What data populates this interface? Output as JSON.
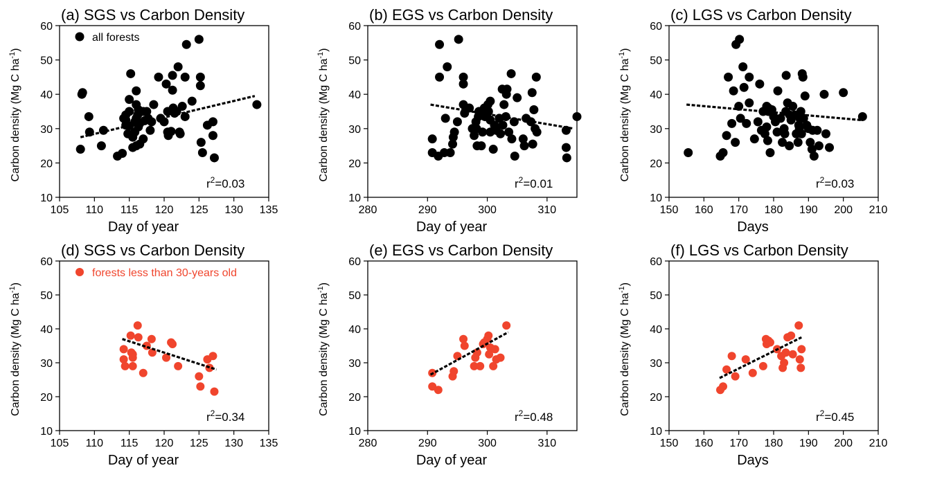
{
  "colors": {
    "black_points": "#000000",
    "red_points": "#f0452d",
    "trend_line": "#000000",
    "legend_red_text": "#f0452d"
  },
  "chart_data": [
    {
      "type": "scatter",
      "title": "(a) SGS vs Carbon Density",
      "xlabel": "Day of year",
      "ylabel": "Carbon density (Mg C ha",
      "ylabel_sup": "-1",
      "ylabel_end": ")",
      "xlim": [
        105,
        135
      ],
      "ylim": [
        10,
        60
      ],
      "xticks": [
        105,
        110,
        115,
        120,
        125,
        130,
        135
      ],
      "yticks": [
        10,
        20,
        30,
        40,
        50,
        60
      ],
      "legend": {
        "label": "all forests",
        "placement": "top-left"
      },
      "r2_prefix": "r",
      "r2_sup": "2",
      "r2_value": "=0.03",
      "point_color": "black",
      "trend": [
        [
          108,
          27.5
        ],
        [
          133,
          39.5
        ]
      ],
      "points": [
        [
          108,
          24
        ],
        [
          108.2,
          40
        ],
        [
          108.3,
          40.5
        ],
        [
          109.2,
          33.5
        ],
        [
          109.3,
          29
        ],
        [
          111,
          25
        ],
        [
          111.3,
          29.5
        ],
        [
          113.3,
          22
        ],
        [
          114,
          22.8
        ],
        [
          114.2,
          33
        ],
        [
          114.5,
          31
        ],
        [
          114.5,
          32.5
        ],
        [
          114.5,
          34
        ],
        [
          114.8,
          28.5
        ],
        [
          115,
          30.8
        ],
        [
          115,
          35
        ],
        [
          115,
          38.5
        ],
        [
          115.2,
          46
        ],
        [
          115.5,
          27.5
        ],
        [
          115.5,
          24.5
        ],
        [
          115.8,
          29
        ],
        [
          115.8,
          32
        ],
        [
          116,
          25
        ],
        [
          116,
          33
        ],
        [
          116,
          41
        ],
        [
          116,
          37
        ],
        [
          116.2,
          34
        ],
        [
          116.3,
          30.5
        ],
        [
          116.3,
          35.5
        ],
        [
          116.5,
          25.5
        ],
        [
          116.5,
          31.5
        ],
        [
          117,
          27
        ],
        [
          117,
          35
        ],
        [
          117.2,
          32.3
        ],
        [
          117.5,
          35
        ],
        [
          117.7,
          33
        ],
        [
          118,
          29.5
        ],
        [
          118.2,
          32
        ],
        [
          118.5,
          37
        ],
        [
          119.2,
          45
        ],
        [
          119.5,
          33
        ],
        [
          120,
          32
        ],
        [
          120.3,
          43
        ],
        [
          120.5,
          35
        ],
        [
          120.5,
          29
        ],
        [
          120.6,
          28
        ],
        [
          121,
          29.2
        ],
        [
          121.2,
          45.5
        ],
        [
          121.2,
          41.2
        ],
        [
          121.3,
          36
        ],
        [
          121.5,
          34.5
        ],
        [
          121.8,
          35
        ],
        [
          122,
          48
        ],
        [
          122.2,
          29
        ],
        [
          122.3,
          28.5
        ],
        [
          122.6,
          36.5
        ],
        [
          123,
          33.5
        ],
        [
          123,
          45
        ],
        [
          123.2,
          54.5
        ],
        [
          124,
          38
        ],
        [
          125,
          56
        ],
        [
          125.2,
          45
        ],
        [
          125.2,
          42.5
        ],
        [
          125.3,
          26
        ],
        [
          125.5,
          23
        ],
        [
          126.2,
          31
        ],
        [
          127,
          32
        ],
        [
          127,
          28
        ],
        [
          127.2,
          21.5
        ],
        [
          133.3,
          37
        ]
      ]
    },
    {
      "type": "scatter",
      "title": "(b) EGS vs Carbon Density",
      "xlabel": "Day of year",
      "ylabel": "Carbon density (Mg C ha",
      "ylabel_sup": "-1",
      "ylabel_end": ")",
      "xlim": [
        280,
        315
      ],
      "ylim": [
        10,
        60
      ],
      "xticks": [
        280,
        290,
        300,
        310
      ],
      "yticks": [
        10,
        20,
        30,
        40,
        50,
        60
      ],
      "r2_prefix": "r",
      "r2_sup": "2",
      "r2_value": "=0.01",
      "point_color": "black",
      "trend": [
        [
          290.5,
          37
        ],
        [
          314.5,
          30
        ]
      ],
      "points": [
        [
          290.8,
          27
        ],
        [
          290.8,
          23
        ],
        [
          291.8,
          22
        ],
        [
          292,
          45
        ],
        [
          292,
          54.5
        ],
        [
          292.8,
          23
        ],
        [
          293,
          33
        ],
        [
          293.3,
          48
        ],
        [
          293.8,
          23
        ],
        [
          294.2,
          25.5
        ],
        [
          294.3,
          27.5
        ],
        [
          294.5,
          29
        ],
        [
          295,
          32
        ],
        [
          295.2,
          56
        ],
        [
          296,
          45
        ],
        [
          296,
          43
        ],
        [
          296,
          37
        ],
        [
          296.2,
          34.5
        ],
        [
          297,
          36
        ],
        [
          297.5,
          30
        ],
        [
          297.8,
          28
        ],
        [
          298.1,
          32
        ],
        [
          298.2,
          30
        ],
        [
          298.3,
          25
        ],
        [
          298.5,
          33.5
        ],
        [
          298.6,
          35
        ],
        [
          299,
          25
        ],
        [
          299.2,
          29
        ],
        [
          299.5,
          36
        ],
        [
          299.6,
          33.5
        ],
        [
          300,
          34.5
        ],
        [
          300.1,
          37
        ],
        [
          300.2,
          35
        ],
        [
          300.5,
          38
        ],
        [
          300.5,
          32.5
        ],
        [
          300.5,
          29
        ],
        [
          301,
          24
        ],
        [
          301.2,
          31
        ],
        [
          301.5,
          29.5
        ],
        [
          302,
          33
        ],
        [
          302.2,
          28.5
        ],
        [
          302.5,
          41.5
        ],
        [
          302.6,
          31
        ],
        [
          302.8,
          37
        ],
        [
          303.1,
          33.5
        ],
        [
          303.2,
          40
        ],
        [
          303.3,
          41.5
        ],
        [
          303.6,
          29
        ],
        [
          304,
          46
        ],
        [
          304.1,
          27
        ],
        [
          304.5,
          32
        ],
        [
          304.6,
          22
        ],
        [
          305,
          39
        ],
        [
          306,
          27
        ],
        [
          306.2,
          25
        ],
        [
          306.5,
          33
        ],
        [
          307.3,
          32
        ],
        [
          307.5,
          40.5
        ],
        [
          307.6,
          25.5
        ],
        [
          307.8,
          35.5
        ],
        [
          308,
          30
        ],
        [
          308.2,
          45
        ],
        [
          308.3,
          29
        ],
        [
          313.2,
          24.5
        ],
        [
          313.2,
          29.5
        ],
        [
          313.3,
          21.5
        ],
        [
          315,
          33.5
        ]
      ]
    },
    {
      "type": "scatter",
      "title": "(c) LGS vs Carbon Density",
      "xlabel": "Days",
      "ylabel": "Carbon density (Mg C ha",
      "ylabel_sup": "-1",
      "ylabel_end": ")",
      "xlim": [
        150,
        210
      ],
      "ylim": [
        10,
        60
      ],
      "xticks": [
        150,
        160,
        170,
        180,
        190,
        200,
        210
      ],
      "yticks": [
        10,
        20,
        30,
        40,
        50,
        60
      ],
      "r2_prefix": "r",
      "r2_sup": "2",
      "r2_value": "=0.03",
      "point_color": "black",
      "trend": [
        [
          155,
          37
        ],
        [
          205,
          32.5
        ]
      ],
      "points": [
        [
          155.5,
          23
        ],
        [
          164.7,
          22
        ],
        [
          165.5,
          23
        ],
        [
          166.5,
          28
        ],
        [
          167,
          45
        ],
        [
          168,
          31.5
        ],
        [
          168.5,
          41
        ],
        [
          169,
          26
        ],
        [
          169.2,
          54.5
        ],
        [
          170,
          36.5
        ],
        [
          170.2,
          56
        ],
        [
          170.5,
          33
        ],
        [
          171.2,
          48
        ],
        [
          171.5,
          42
        ],
        [
          172.2,
          31.5
        ],
        [
          173,
          45
        ],
        [
          173,
          37.5
        ],
        [
          174.5,
          27
        ],
        [
          175.5,
          32
        ],
        [
          176,
          43
        ],
        [
          176.5,
          29.5
        ],
        [
          177,
          35
        ],
        [
          177.5,
          28.5
        ],
        [
          178,
          36.5
        ],
        [
          178,
          30.5
        ],
        [
          178.3,
          26.5
        ],
        [
          178.5,
          36
        ],
        [
          178.5,
          35
        ],
        [
          179,
          23
        ],
        [
          179.5,
          35.5
        ],
        [
          180,
          33.5
        ],
        [
          180.5,
          32
        ],
        [
          181,
          29
        ],
        [
          181.2,
          41
        ],
        [
          182,
          33
        ],
        [
          182.5,
          26
        ],
        [
          183,
          30
        ],
        [
          183.2,
          28.5
        ],
        [
          183.5,
          35
        ],
        [
          183.6,
          45.5
        ],
        [
          184,
          37.5
        ],
        [
          184.5,
          25
        ],
        [
          184.6,
          34
        ],
        [
          185,
          32.5
        ],
        [
          185.5,
          36.5
        ],
        [
          186,
          34
        ],
        [
          186.5,
          28.5
        ],
        [
          187,
          26
        ],
        [
          187.2,
          31
        ],
        [
          187.4,
          30
        ],
        [
          187.5,
          33
        ],
        [
          187.8,
          35
        ],
        [
          188,
          28.5
        ],
        [
          188.2,
          46
        ],
        [
          188.4,
          45
        ],
        [
          188.6,
          33
        ],
        [
          189,
          39.5
        ],
        [
          189.5,
          31
        ],
        [
          190,
          30
        ],
        [
          190.5,
          26
        ],
        [
          191,
          24
        ],
        [
          191.2,
          29.5
        ],
        [
          191.6,
          22
        ],
        [
          192.5,
          29.5
        ],
        [
          193,
          25
        ],
        [
          194.5,
          40
        ],
        [
          195,
          28.5
        ],
        [
          196,
          24.5
        ],
        [
          200,
          40.5
        ],
        [
          205.5,
          33.5
        ]
      ]
    },
    {
      "type": "scatter",
      "title": "(d) SGS vs Carbon Density",
      "xlabel": "Day of year",
      "ylabel": "Carbon density (Mg C ha",
      "ylabel_sup": "-1",
      "ylabel_end": ")",
      "xlim": [
        105,
        135
      ],
      "ylim": [
        10,
        60
      ],
      "xticks": [
        105,
        110,
        115,
        120,
        125,
        130,
        135
      ],
      "yticks": [
        10,
        20,
        30,
        40,
        50,
        60
      ],
      "legend": {
        "label": "forests less than 30-years old",
        "placement": "top-left"
      },
      "r2_prefix": "r",
      "r2_sup": "2",
      "r2_value": "=0.34",
      "point_color": "red",
      "trend": [
        [
          114,
          37
        ],
        [
          127.5,
          28
        ]
      ],
      "points": [
        [
          114.2,
          34
        ],
        [
          114.2,
          31
        ],
        [
          114.4,
          29
        ],
        [
          115.2,
          38
        ],
        [
          115.3,
          33
        ],
        [
          115.5,
          32.5
        ],
        [
          115.5,
          29
        ],
        [
          115.5,
          31.5
        ],
        [
          116.2,
          41
        ],
        [
          116.3,
          37.5
        ],
        [
          117,
          27
        ],
        [
          117.5,
          35
        ],
        [
          118.2,
          37
        ],
        [
          118.3,
          33
        ],
        [
          120.3,
          31.5
        ],
        [
          121,
          36
        ],
        [
          121.2,
          35.5
        ],
        [
          122,
          29
        ],
        [
          125,
          26
        ],
        [
          125.2,
          23
        ],
        [
          126.2,
          31
        ],
        [
          126.5,
          28.5
        ],
        [
          127,
          32
        ],
        [
          127.2,
          21.5
        ]
      ]
    },
    {
      "type": "scatter",
      "title": "(e) EGS vs Carbon Density",
      "xlabel": "Day of year",
      "ylabel": "Carbon density (Mg C ha",
      "ylabel_sup": "-1",
      "ylabel_end": ")",
      "xlim": [
        280,
        315
      ],
      "ylim": [
        10,
        60
      ],
      "xticks": [
        280,
        290,
        300,
        310
      ],
      "yticks": [
        10,
        20,
        30,
        40,
        50,
        60
      ],
      "r2_prefix": "r",
      "r2_sup": "2",
      "r2_value": "=0.48",
      "point_color": "red",
      "trend": [
        [
          290.5,
          26.5
        ],
        [
          303.5,
          39
        ]
      ],
      "points": [
        [
          290.8,
          27
        ],
        [
          290.8,
          23
        ],
        [
          291.8,
          22
        ],
        [
          294.2,
          26
        ],
        [
          294.4,
          27.5
        ],
        [
          295,
          32
        ],
        [
          296,
          37
        ],
        [
          296.2,
          35
        ],
        [
          297.8,
          29
        ],
        [
          298,
          31.5
        ],
        [
          298.3,
          33
        ],
        [
          298.8,
          29
        ],
        [
          299.3,
          35.5
        ],
        [
          299.5,
          36
        ],
        [
          300,
          37
        ],
        [
          300.2,
          38
        ],
        [
          300.3,
          32.5
        ],
        [
          300.5,
          34.5
        ],
        [
          301,
          29
        ],
        [
          301.3,
          34
        ],
        [
          301.5,
          31
        ],
        [
          302.2,
          31.5
        ],
        [
          303.2,
          41
        ]
      ]
    },
    {
      "type": "scatter",
      "title": "(f) LGS vs Carbon Density",
      "xlabel": "Days",
      "ylabel": "Carbon density (Mg C ha",
      "ylabel_sup": "-1",
      "ylabel_end": ")",
      "xlim": [
        150,
        210
      ],
      "ylim": [
        10,
        60
      ],
      "xticks": [
        150,
        160,
        170,
        180,
        190,
        200,
        210
      ],
      "yticks": [
        10,
        20,
        30,
        40,
        50,
        60
      ],
      "r2_prefix": "r",
      "r2_sup": "2",
      "r2_value": "=0.45",
      "point_color": "red",
      "trend": [
        [
          164.5,
          25.5
        ],
        [
          188,
          37.5
        ]
      ],
      "points": [
        [
          164.7,
          22
        ],
        [
          165.5,
          23
        ],
        [
          166.5,
          28
        ],
        [
          168,
          32
        ],
        [
          169,
          26
        ],
        [
          172,
          31
        ],
        [
          174,
          27
        ],
        [
          177,
          29
        ],
        [
          177.8,
          37
        ],
        [
          178,
          35.5
        ],
        [
          178.5,
          36.5
        ],
        [
          179,
          36
        ],
        [
          181,
          34
        ],
        [
          182.2,
          32
        ],
        [
          182.6,
          28.5
        ],
        [
          183,
          30
        ],
        [
          183.5,
          33
        ],
        [
          184,
          37.5
        ],
        [
          185,
          38
        ],
        [
          185.5,
          32.5
        ],
        [
          187.2,
          41
        ],
        [
          187.5,
          31
        ],
        [
          187.8,
          28.5
        ],
        [
          188,
          34
        ]
      ]
    }
  ]
}
